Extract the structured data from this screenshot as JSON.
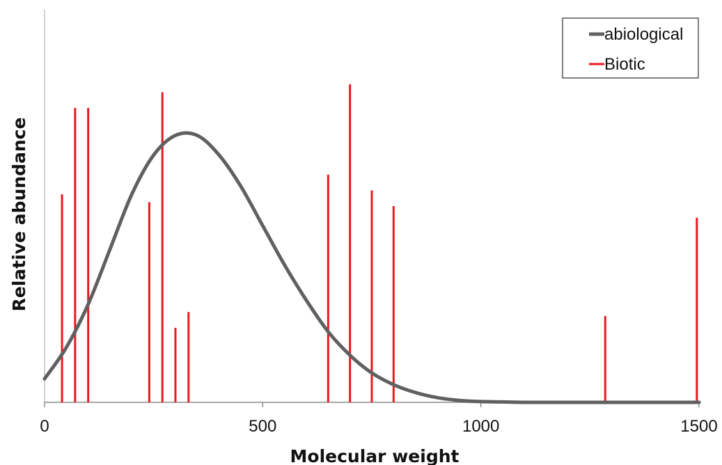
{
  "chart_data": {
    "type": "line",
    "title": "",
    "xlabel": "Molecular weight",
    "ylabel": "Relative abundance",
    "xlim": [
      0,
      1500
    ],
    "ylim": [
      0,
      1
    ],
    "xticks": [
      0,
      500,
      1000,
      1500
    ],
    "grid": false,
    "legend_position": "top-right",
    "series": [
      {
        "name": "abiological",
        "kind": "curve",
        "color": "#606060",
        "x": [
          0,
          50,
          100,
          150,
          200,
          250,
          300,
          350,
          400,
          450,
          500,
          550,
          600,
          650,
          700,
          750,
          800,
          850,
          900,
          950,
          1000,
          1050,
          1100,
          1150,
          1200,
          1250,
          1300,
          1350,
          1400,
          1450,
          1500
        ],
        "y": [
          0.06,
          0.14,
          0.25,
          0.39,
          0.53,
          0.63,
          0.68,
          0.68,
          0.63,
          0.55,
          0.45,
          0.35,
          0.26,
          0.18,
          0.12,
          0.075,
          0.045,
          0.025,
          0.012,
          0.005,
          0.002,
          0.001,
          0,
          0,
          0,
          0,
          0,
          0,
          0,
          0,
          0
        ]
      },
      {
        "name": "Biotic",
        "kind": "stem",
        "color": "#e8191f",
        "x": [
          40,
          70,
          100,
          240,
          270,
          300,
          330,
          650,
          700,
          750,
          800,
          1285,
          1495
        ],
        "y": [
          0.53,
          0.75,
          0.75,
          0.51,
          0.79,
          0.19,
          0.23,
          0.58,
          0.81,
          0.54,
          0.5,
          0.22,
          0.47
        ]
      }
    ]
  }
}
